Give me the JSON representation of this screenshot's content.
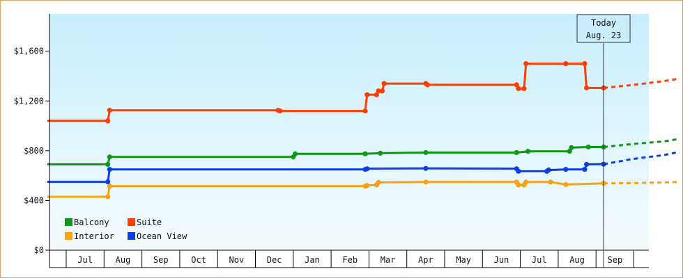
{
  "chart_data": {
    "type": "line",
    "title": "",
    "xlabel": "",
    "ylabel": "",
    "ylim": [
      0,
      1900
    ],
    "y_ticks": [
      {
        "value": 0,
        "label": "$0"
      },
      {
        "value": 400,
        "label": "$400"
      },
      {
        "value": 800,
        "label": "$800"
      },
      {
        "value": 1200,
        "label": "$1,200"
      },
      {
        "value": 1600,
        "label": "$1,600"
      }
    ],
    "months": [
      "Jul",
      "Aug",
      "Sep",
      "Oct",
      "Nov",
      "Dec",
      "Jan",
      "Feb",
      "Mar",
      "Apr",
      "May",
      "Jun",
      "Jul",
      "Aug",
      "Sep"
    ],
    "grid": false,
    "legend_position": "bottom-left",
    "today_marker": {
      "line1": "Today",
      "line2": "Aug. 23",
      "x": 14.2
    },
    "series": [
      {
        "name": "Balcony",
        "color": "#109618",
        "points": [
          [
            -0.5,
            690
          ],
          [
            1.1,
            690
          ],
          [
            1.15,
            750
          ],
          [
            6.0,
            750
          ],
          [
            6.05,
            775
          ],
          [
            7.9,
            775
          ],
          [
            8.3,
            780
          ],
          [
            9.5,
            785
          ],
          [
            11.9,
            785
          ],
          [
            12.2,
            795
          ],
          [
            13.3,
            795
          ],
          [
            13.35,
            825
          ],
          [
            13.8,
            830
          ],
          [
            14.2,
            830
          ]
        ],
        "projection": [
          [
            14.2,
            830
          ],
          [
            15.0,
            855
          ],
          [
            15.8,
            875
          ],
          [
            16.2,
            895
          ]
        ]
      },
      {
        "name": "Suite",
        "color": "#ff3d00",
        "points": [
          [
            -0.5,
            1040
          ],
          [
            1.1,
            1040
          ],
          [
            1.15,
            1125
          ],
          [
            5.6,
            1125
          ],
          [
            5.65,
            1120
          ],
          [
            7.9,
            1120
          ],
          [
            7.95,
            1250
          ],
          [
            8.2,
            1250
          ],
          [
            8.25,
            1280
          ],
          [
            8.35,
            1280
          ],
          [
            8.4,
            1340
          ],
          [
            9.5,
            1340
          ],
          [
            9.55,
            1330
          ],
          [
            11.9,
            1330
          ],
          [
            11.95,
            1300
          ],
          [
            12.1,
            1300
          ],
          [
            12.15,
            1500
          ],
          [
            13.2,
            1500
          ],
          [
            13.7,
            1500
          ],
          [
            13.75,
            1305
          ],
          [
            14.2,
            1305
          ]
        ],
        "projection": [
          [
            14.2,
            1305
          ],
          [
            15.0,
            1330
          ],
          [
            15.8,
            1360
          ],
          [
            16.2,
            1380
          ]
        ]
      },
      {
        "name": "Interior",
        "color": "#f7a30e",
        "points": [
          [
            -0.5,
            430
          ],
          [
            1.1,
            430
          ],
          [
            1.15,
            515
          ],
          [
            7.9,
            515
          ],
          [
            7.95,
            520
          ],
          [
            8.2,
            525
          ],
          [
            8.25,
            545
          ],
          [
            9.5,
            548
          ],
          [
            11.9,
            548
          ],
          [
            11.95,
            525
          ],
          [
            12.1,
            525
          ],
          [
            12.15,
            548
          ],
          [
            12.8,
            548
          ],
          [
            13.2,
            528
          ],
          [
            14.2,
            538
          ]
        ],
        "projection": [
          [
            14.2,
            538
          ],
          [
            15.0,
            540
          ],
          [
            15.8,
            545
          ],
          [
            16.2,
            548
          ]
        ]
      },
      {
        "name": "Ocean View",
        "color": "#0b3fe5",
        "points": [
          [
            -0.5,
            550
          ],
          [
            1.1,
            550
          ],
          [
            1.15,
            650
          ],
          [
            7.9,
            650
          ],
          [
            7.95,
            655
          ],
          [
            9.5,
            658
          ],
          [
            11.9,
            655
          ],
          [
            11.95,
            635
          ],
          [
            12.7,
            635
          ],
          [
            12.75,
            645
          ],
          [
            13.2,
            650
          ],
          [
            13.7,
            650
          ],
          [
            13.75,
            690
          ],
          [
            14.2,
            692
          ]
        ],
        "projection": [
          [
            14.2,
            692
          ],
          [
            15.0,
            735
          ],
          [
            15.8,
            765
          ],
          [
            16.2,
            790
          ]
        ]
      }
    ]
  },
  "colors": {
    "frame_border": "#e2a465",
    "plot_bg_top": "#c8eefb",
    "plot_bg_bottom": "#f5fbfe",
    "axis": "#000000"
  }
}
